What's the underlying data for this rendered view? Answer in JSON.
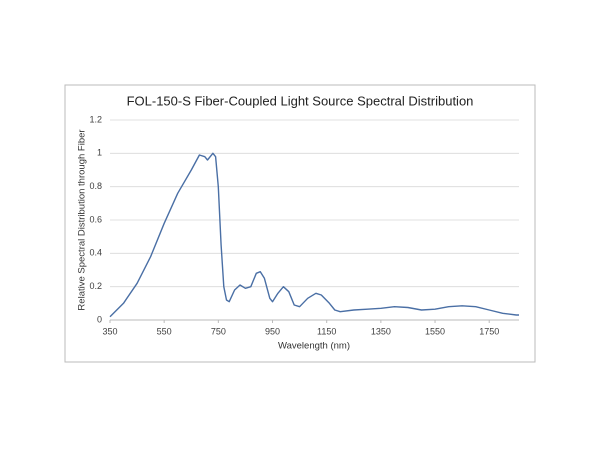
{
  "chart_data": {
    "type": "line",
    "title": "FOL-150-S Fiber-Coupled Light Source Spectral Distribution",
    "x_label": "Wavelength (nm)",
    "y_label": "Relative Spectral  Distribution through Fiber",
    "color": "#4a6fa5",
    "x": [
      350,
      400,
      450,
      500,
      550,
      600,
      650,
      680,
      700,
      710,
      730,
      740,
      750,
      760,
      770,
      780,
      790,
      810,
      830,
      850,
      870,
      890,
      905,
      920,
      940,
      950,
      970,
      990,
      1010,
      1030,
      1050,
      1080,
      1110,
      1130,
      1160,
      1180,
      1200,
      1250,
      1300,
      1350,
      1400,
      1450,
      1500,
      1550,
      1600,
      1650,
      1700,
      1750,
      1800,
      1850,
      1860
    ],
    "values": [
      0.02,
      0.1,
      0.22,
      0.38,
      0.58,
      0.76,
      0.9,
      0.99,
      0.98,
      0.96,
      1.0,
      0.98,
      0.8,
      0.45,
      0.2,
      0.12,
      0.11,
      0.18,
      0.21,
      0.19,
      0.2,
      0.28,
      0.29,
      0.25,
      0.13,
      0.11,
      0.16,
      0.2,
      0.17,
      0.09,
      0.08,
      0.13,
      0.16,
      0.15,
      0.1,
      0.06,
      0.05,
      0.06,
      0.065,
      0.07,
      0.08,
      0.075,
      0.06,
      0.065,
      0.08,
      0.085,
      0.08,
      0.06,
      0.04,
      0.03,
      0.03
    ],
    "xlim": [
      350,
      1860
    ],
    "xticks": [
      350,
      550,
      750,
      950,
      1150,
      1350,
      1550,
      1750
    ],
    "ylim": [
      0,
      1.2
    ],
    "yticks": [
      0,
      0.2,
      0.4,
      0.6,
      0.8,
      1,
      1.2
    ],
    "grid": true
  }
}
